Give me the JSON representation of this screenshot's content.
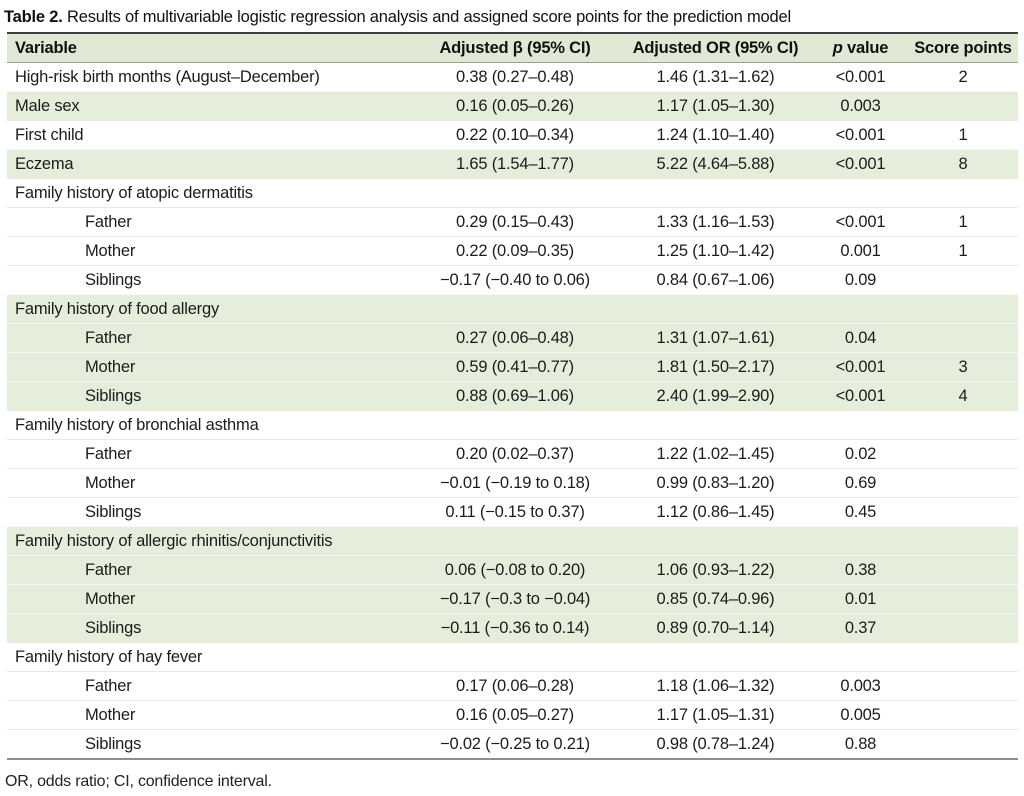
{
  "title": {
    "label": "Table 2.",
    "text": "Results of multivariable logistic regression analysis and assigned score points for the prediction model"
  },
  "table": {
    "header": {
      "variable": "Variable",
      "beta": "Adjusted β (95% CI)",
      "or": "Adjusted OR (95% CI)",
      "p_italic": "p",
      "p_rest": " value",
      "score": "Score points"
    },
    "rows": [
      {
        "variable": "High-risk birth months (August–December)",
        "beta": "0.38 (0.27–0.48)",
        "or": "1.46 (1.31–1.62)",
        "p": "<0.001",
        "score": "2",
        "shade": "white",
        "indent": false,
        "section": false
      },
      {
        "variable": "Male sex",
        "beta": "0.16 (0.05–0.26)",
        "or": "1.17 (1.05–1.30)",
        "p": "0.003",
        "score": "",
        "shade": "green",
        "indent": false,
        "section": false
      },
      {
        "variable": "First child",
        "beta": "0.22 (0.10–0.34)",
        "or": "1.24 (1.10–1.40)",
        "p": "<0.001",
        "score": "1",
        "shade": "white",
        "indent": false,
        "section": false
      },
      {
        "variable": "Eczema",
        "beta": "1.65 (1.54–1.77)",
        "or": "5.22 (4.64–5.88)",
        "p": "<0.001",
        "score": "8",
        "shade": "green",
        "indent": false,
        "section": false
      },
      {
        "variable": "Family history of atopic dermatitis",
        "shade": "white",
        "indent": false,
        "section": true
      },
      {
        "variable": "Father",
        "beta": "0.29 (0.15–0.43)",
        "or": "1.33 (1.16–1.53)",
        "p": "<0.001",
        "score": "1",
        "shade": "white",
        "indent": true,
        "section": false
      },
      {
        "variable": "Mother",
        "beta": "0.22 (0.09–0.35)",
        "or": "1.25 (1.10–1.42)",
        "p": "0.001",
        "score": "1",
        "shade": "white",
        "indent": true,
        "section": false
      },
      {
        "variable": "Siblings",
        "beta": "−0.17 (−0.40 to 0.06)",
        "or": "0.84 (0.67–1.06)",
        "p": "0.09",
        "score": "",
        "shade": "white",
        "indent": true,
        "section": false
      },
      {
        "variable": "Family history of food allergy",
        "shade": "green",
        "indent": false,
        "section": true
      },
      {
        "variable": "Father",
        "beta": "0.27 (0.06–0.48)",
        "or": "1.31 (1.07–1.61)",
        "p": "0.04",
        "score": "",
        "shade": "green",
        "indent": true,
        "section": false
      },
      {
        "variable": "Mother",
        "beta": "0.59 (0.41–0.77)",
        "or": "1.81 (1.50–2.17)",
        "p": "<0.001",
        "score": "3",
        "shade": "green",
        "indent": true,
        "section": false
      },
      {
        "variable": "Siblings",
        "beta": "0.88 (0.69–1.06)",
        "or": "2.40 (1.99–2.90)",
        "p": "<0.001",
        "score": "4",
        "shade": "green",
        "indent": true,
        "section": false
      },
      {
        "variable": "Family history of bronchial asthma",
        "shade": "white",
        "indent": false,
        "section": true
      },
      {
        "variable": "Father",
        "beta": "0.20 (0.02–0.37)",
        "or": "1.22 (1.02–1.45)",
        "p": "0.02",
        "score": "",
        "shade": "white",
        "indent": true,
        "section": false
      },
      {
        "variable": "Mother",
        "beta": "−0.01 (−0.19 to 0.18)",
        "or": "0.99 (0.83–1.20)",
        "p": "0.69",
        "score": "",
        "shade": "white",
        "indent": true,
        "section": false
      },
      {
        "variable": "Siblings",
        "beta": "0.11 (−0.15 to 0.37)",
        "or": "1.12 (0.86–1.45)",
        "p": "0.45",
        "score": "",
        "shade": "white",
        "indent": true,
        "section": false
      },
      {
        "variable": "Family history of allergic rhinitis/conjunctivitis",
        "shade": "green",
        "indent": false,
        "section": true
      },
      {
        "variable": "Father",
        "beta": "0.06 (−0.08 to 0.20)",
        "or": "1.06 (0.93–1.22)",
        "p": "0.38",
        "score": "",
        "shade": "green",
        "indent": true,
        "section": false
      },
      {
        "variable": "Mother",
        "beta": "−0.17 (−0.3 to −0.04)",
        "or": "0.85 (0.74–0.96)",
        "p": "0.01",
        "score": "",
        "shade": "green",
        "indent": true,
        "section": false
      },
      {
        "variable": "Siblings",
        "beta": "−0.11 (−0.36 to 0.14)",
        "or": "0.89 (0.70–1.14)",
        "p": "0.37",
        "score": "",
        "shade": "green",
        "indent": true,
        "section": false
      },
      {
        "variable": "Family history of hay fever",
        "shade": "white",
        "indent": false,
        "section": true
      },
      {
        "variable": "Father",
        "beta": "0.17 (0.06–0.28)",
        "or": "1.18 (1.06–1.32)",
        "p": "0.003",
        "score": "",
        "shade": "white",
        "indent": true,
        "section": false
      },
      {
        "variable": "Mother",
        "beta": "0.16 (0.05–0.27)",
        "or": "1.17 (1.05–1.31)",
        "p": "0.005",
        "score": "",
        "shade": "white",
        "indent": true,
        "section": false
      },
      {
        "variable": "Siblings",
        "beta": "−0.02 (−0.25 to 0.21)",
        "or": "0.98 (0.78–1.24)",
        "p": "0.88",
        "score": "",
        "shade": "white",
        "indent": true,
        "section": false
      }
    ]
  },
  "footnote": "OR, odds ratio; CI, confidence interval.",
  "colors": {
    "row_highlight_green": "#e4eeda",
    "header_green": "#dfe9d3",
    "rule_dark": "#3e423e",
    "rule_gray": "#8d918c",
    "text": "#1c1c1c"
  }
}
